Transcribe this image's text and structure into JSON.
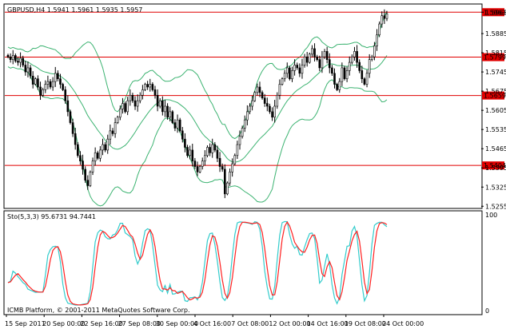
{
  "chart_data": [
    {
      "type": "candlestick",
      "symbol_title": "GBPUSD,H4  1.5941 1.5961 1.5935 1.5957",
      "ylim": [
        1.525,
        1.599
      ],
      "y_ticks": [
        "1.5963",
        "1.5885",
        "1.5815",
        "1.5745",
        "1.5675",
        "1.5605",
        "1.5535",
        "1.5465",
        "1.5395",
        "1.5325",
        "1.5255"
      ],
      "y_tick_values": [
        1.5963,
        1.5885,
        1.5815,
        1.5745,
        1.5675,
        1.5605,
        1.5535,
        1.5465,
        1.5395,
        1.5325,
        1.5255
      ],
      "horizontal_levels": [
        {
          "label": "1.5963",
          "value": 1.5963
        },
        {
          "label": "1.5799",
          "value": 1.5799
        },
        {
          "label": "1.5659",
          "value": 1.5659
        },
        {
          "label": "1.5404",
          "value": 1.5404
        }
      ],
      "level_color": "#e00000",
      "band_color": "#3cb371",
      "close": [
        1.58,
        1.579,
        1.5805,
        1.5785,
        1.578,
        1.5795,
        1.577,
        1.5745,
        1.576,
        1.573,
        1.57,
        1.572,
        1.569,
        1.566,
        1.568,
        1.57,
        1.571,
        1.569,
        1.571,
        1.574,
        1.572,
        1.57,
        1.568,
        1.564,
        1.56,
        1.556,
        1.552,
        1.548,
        1.544,
        1.542,
        1.539,
        1.535,
        1.533,
        1.538,
        1.542,
        1.545,
        1.543,
        1.546,
        1.548,
        1.546,
        1.55,
        1.553,
        1.552,
        1.556,
        1.558,
        1.561,
        1.563,
        1.56,
        1.564,
        1.566,
        1.564,
        1.562,
        1.564,
        1.566,
        1.568,
        1.57,
        1.569,
        1.57,
        1.568,
        1.566,
        1.562,
        1.564,
        1.56,
        1.562,
        1.558,
        1.56,
        1.556,
        1.554,
        1.557,
        1.553,
        1.55,
        1.547,
        1.544,
        1.546,
        1.542,
        1.54,
        1.538,
        1.54,
        1.542,
        1.544,
        1.547,
        1.545,
        1.548,
        1.546,
        1.543,
        1.54,
        1.539,
        1.53,
        1.534,
        1.538,
        1.541,
        1.544,
        1.548,
        1.551,
        1.554,
        1.557,
        1.56,
        1.562,
        1.564,
        1.567,
        1.569,
        1.567,
        1.565,
        1.563,
        1.562,
        1.56,
        1.558,
        1.562,
        1.566,
        1.57,
        1.572,
        1.574,
        1.576,
        1.572,
        1.575,
        1.577,
        1.576,
        1.574,
        1.577,
        1.58,
        1.578,
        1.581,
        1.583,
        1.58,
        1.579,
        1.576,
        1.58,
        1.582,
        1.579,
        1.576,
        1.574,
        1.57,
        1.568,
        1.571,
        1.576,
        1.572,
        1.575,
        1.578,
        1.58,
        1.582,
        1.578,
        1.575,
        1.572,
        1.57,
        1.574,
        1.579,
        1.58,
        1.584,
        1.588,
        1.592,
        1.595,
        1.594,
        1.5957
      ],
      "bollinger": {
        "period": 20,
        "deviation": 2
      }
    },
    {
      "type": "line",
      "title": "Sto(5,3,3) 95.6731 94.7441",
      "ylim": [
        0,
        100
      ],
      "y_ticks": [
        "100",
        "0"
      ],
      "y_tick_values": [
        100,
        0
      ],
      "series": [
        {
          "color": "#33cccc",
          "role": "main"
        },
        {
          "color": "#ff2020",
          "role": "signal"
        }
      ]
    }
  ],
  "x_ticks": [
    "15 Sep 2011",
    "20 Sep 00:00",
    "22 Sep 16:00",
    "27 Sep 08:00",
    "30 Sep 00:00",
    "4 Oct 16:00",
    "7 Oct 08:00",
    "12 Oct 00:00",
    "14 Oct 16:00",
    "19 Oct 08:00",
    "24 Oct 00:00"
  ],
  "footer": "ICMB Platform, © 2001-2011 MetaQuotes Software Corp."
}
